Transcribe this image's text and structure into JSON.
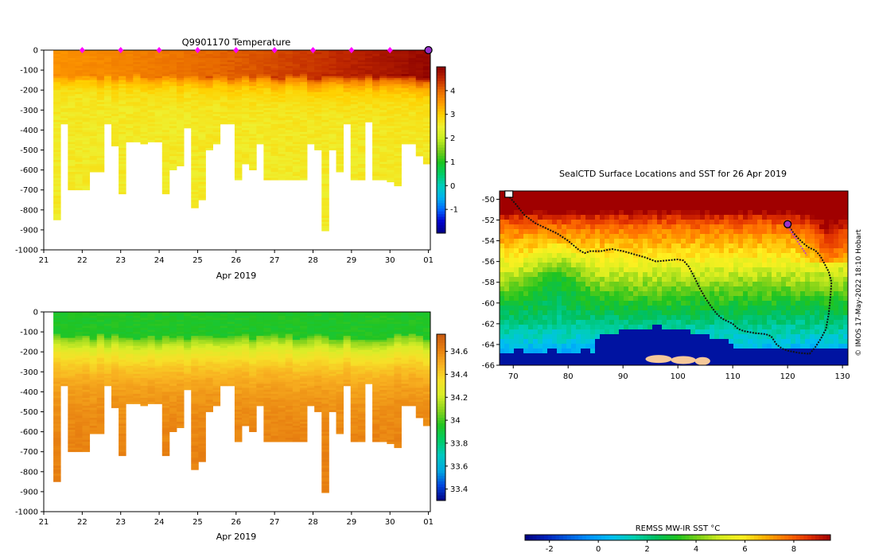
{
  "colors": {
    "temperature_scale": [
      "#000080",
      "#0000cd",
      "#0066ff",
      "#00b2ee",
      "#00cdbe",
      "#00cd66",
      "#1dc41d",
      "#7ccd1a",
      "#c8f020",
      "#eef030",
      "#ffd000",
      "#ff9a00",
      "#e86a00",
      "#c02800",
      "#8b0000"
    ],
    "salinity_scale": [
      "#000080",
      "#0044dd",
      "#00a8e0",
      "#00c8c0",
      "#00cd66",
      "#22c422",
      "#8ad41e",
      "#d8ee28",
      "#f7e028",
      "#f8b020",
      "#e88010",
      "#c85a10"
    ],
    "sst_scale": [
      "#000080",
      "#0022bb",
      "#005ee0",
      "#0096ff",
      "#00c0f0",
      "#00d0b0",
      "#00c060",
      "#20c420",
      "#80d218",
      "#d8ee20",
      "#fff020",
      "#ffb000",
      "#ff7000",
      "#e03000",
      "#a00000"
    ],
    "land": "#f5c89a",
    "track": "#111111",
    "recent_track": "#c040c0",
    "profile_marker": "#ff00ff",
    "current_marker": "#9932cc",
    "nodata": "#ffffff"
  },
  "chart_data": [
    {
      "type": "heatmap",
      "id": "temperature_section",
      "title": "Q9901170  Temperature",
      "xlabel": "Apr 2019",
      "xtick_labels": [
        "21",
        "22",
        "23",
        "24",
        "25",
        "26",
        "27",
        "28",
        "29",
        "30",
        "01"
      ],
      "xlim": [
        21,
        31.05
      ],
      "ylim": [
        -1000,
        0
      ],
      "ytick_values": [
        0,
        -100,
        -200,
        -300,
        -400,
        -500,
        -600,
        -700,
        -800,
        -900,
        -1000
      ],
      "ytick_labels": [
        "0",
        "-100",
        "-200",
        "-300",
        "-400",
        "-500",
        "-600",
        "-700",
        "-800",
        "-900",
        "-1000"
      ],
      "colorbar": {
        "min": -2,
        "max": 5,
        "tick_values": [
          -1,
          0,
          1,
          2,
          3,
          4
        ],
        "tick_labels": [
          "-1",
          "0",
          "1",
          "2",
          "3",
          "4"
        ]
      },
      "profile_marker_days": [
        22,
        23,
        24,
        25,
        26,
        27,
        28,
        29,
        30
      ],
      "current_profile_day": 31.0,
      "mixed_layer_temp_start": 3.6,
      "mixed_layer_temp_end": 4.9,
      "deep_temp": 2.6,
      "profile_max_depths": [
        850,
        370,
        700,
        700,
        700,
        610,
        610,
        370,
        480,
        720,
        460,
        460,
        470,
        460,
        460,
        720,
        600,
        580,
        390,
        790,
        750,
        500,
        470,
        370,
        370,
        650,
        570,
        600,
        470,
        650,
        650,
        650,
        650,
        650,
        650,
        470,
        500,
        905,
        500,
        610,
        370,
        650,
        650,
        360,
        650,
        650,
        660,
        680,
        470,
        470,
        530,
        570
      ]
    },
    {
      "type": "heatmap",
      "id": "salinity_section",
      "title": "",
      "xlabel": "Apr 2019",
      "xtick_labels": [
        "21",
        "22",
        "23",
        "24",
        "25",
        "26",
        "27",
        "28",
        "29",
        "30",
        "01"
      ],
      "xlim": [
        21,
        31.05
      ],
      "ylim": [
        -1000,
        0
      ],
      "ytick_values": [
        0,
        -100,
        -200,
        -300,
        -400,
        -500,
        -600,
        -700,
        -800,
        -900,
        -1000
      ],
      "ytick_labels": [
        "0",
        "-100",
        "-200",
        "-300",
        "-400",
        "-500",
        "-600",
        "-700",
        "-800",
        "-900",
        "-1000"
      ],
      "colorbar": {
        "min": 33.3,
        "max": 34.75,
        "tick_values": [
          33.4,
          33.6,
          33.8,
          34,
          34.2,
          34.4,
          34.6
        ],
        "tick_labels": [
          "33.4",
          "33.6",
          "33.8",
          "34",
          "34.2",
          "34.4",
          "34.6"
        ]
      },
      "surface_salinity": 33.95,
      "deep_salinity": 34.62
    },
    {
      "type": "heatmap",
      "id": "sst_map",
      "title": "SealCTD Surface Locations and SST for 26 Apr 2019",
      "xlim": [
        67.5,
        131
      ],
      "ylim": [
        -66,
        -49.2
      ],
      "xtick_values": [
        70,
        80,
        90,
        100,
        110,
        120,
        130
      ],
      "xtick_labels": [
        "70",
        "80",
        "90",
        "100",
        "110",
        "120",
        "130"
      ],
      "ytick_values": [
        -50,
        -52,
        -54,
        -56,
        -58,
        -60,
        -62,
        -64,
        -66
      ],
      "ytick_labels": [
        "-50",
        "-52",
        "-54",
        "-56",
        "-58",
        "-60",
        "-62",
        "-64",
        "-66"
      ],
      "track_lon": [
        69,
        70.5,
        72,
        74,
        76,
        78,
        80,
        82,
        83,
        84,
        86,
        88,
        90,
        92,
        94,
        96,
        98,
        100,
        101,
        102,
        103,
        104,
        105,
        106,
        107,
        108,
        110,
        111,
        112,
        114,
        116,
        117,
        118,
        119,
        120,
        122,
        124,
        125,
        126,
        127,
        127.5,
        127.8,
        128,
        127.5,
        127,
        126.5,
        126,
        125.5,
        125,
        124,
        123,
        122,
        121.5,
        121,
        120.5,
        120
      ],
      "track_lat": [
        -49.6,
        -50.5,
        -51.5,
        -52.3,
        -52.8,
        -53.3,
        -54.0,
        -54.9,
        -55.2,
        -55.0,
        -55.0,
        -54.8,
        -55.0,
        -55.3,
        -55.6,
        -56.0,
        -55.9,
        -55.8,
        -55.9,
        -56.5,
        -57.5,
        -58.6,
        -59.5,
        -60.3,
        -61.0,
        -61.5,
        -62.0,
        -62.5,
        -62.7,
        -62.9,
        -63.0,
        -63.2,
        -64.0,
        -64.4,
        -64.6,
        -64.8,
        -64.9,
        -64.3,
        -63.5,
        -62.5,
        -61.0,
        -59.5,
        -58.0,
        -57.0,
        -56.5,
        -56.0,
        -55.5,
        -55.2,
        -54.9,
        -54.7,
        -54.3,
        -53.8,
        -53.5,
        -53.2,
        -52.8,
        -52.4
      ],
      "recent_track_lon": [
        120,
        120.5,
        121,
        121.5,
        122,
        122.5,
        123,
        123.5
      ],
      "recent_track_lat": [
        -52.4,
        -53.0,
        -53.4,
        -53.8,
        -54.2,
        -54.6,
        -55.0,
        -55.4
      ],
      "start_location": [
        69.2,
        -49.5
      ],
      "current_location": [
        120.0,
        -52.4
      ],
      "side_label": "© IMOS 17-May-2022 18:10 Hobart",
      "colorbar": {
        "title": "REMSS MW-IR SST °C",
        "min": -3,
        "max": 9.5,
        "tick_values": [
          -2,
          0,
          2,
          4,
          6,
          8
        ],
        "tick_labels": [
          "-2",
          "0",
          "2",
          "4",
          "6",
          "8"
        ]
      }
    }
  ]
}
